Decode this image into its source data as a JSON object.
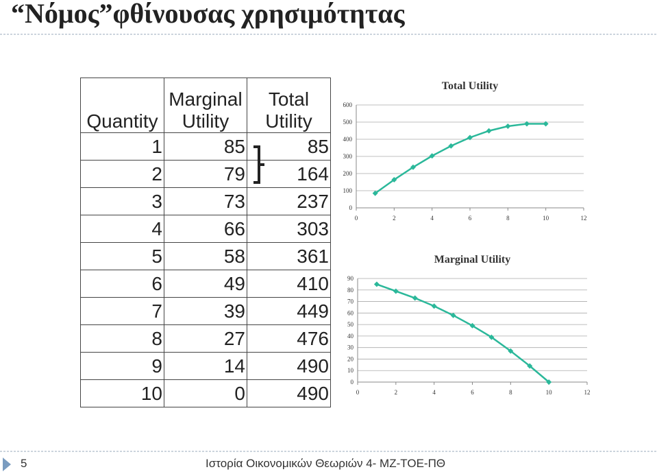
{
  "title": "“Νόμος”φθίνουσας χρησιμότητας",
  "table": {
    "header": [
      "Quantity",
      "Marginal Utility",
      "Total Utility"
    ],
    "rows": [
      [
        1,
        85,
        85
      ],
      [
        2,
        79,
        164
      ],
      [
        3,
        73,
        237
      ],
      [
        4,
        66,
        303
      ],
      [
        5,
        58,
        361
      ],
      [
        6,
        49,
        410
      ],
      [
        7,
        39,
        449
      ],
      [
        8,
        27,
        476
      ],
      [
        9,
        14,
        490
      ],
      [
        10,
        0,
        490
      ]
    ]
  },
  "chart_data": [
    {
      "type": "line",
      "title": "Total Utility",
      "x": [
        1,
        2,
        3,
        4,
        5,
        6,
        7,
        8,
        9,
        10
      ],
      "series": [
        {
          "color": "#2bb89a",
          "values": [
            85,
            164,
            237,
            303,
            361,
            410,
            449,
            476,
            490,
            490
          ]
        }
      ],
      "xlim": [
        0,
        12
      ],
      "xticks": [
        0,
        2,
        4,
        6,
        8,
        10,
        12
      ],
      "ylim": [
        0,
        600
      ],
      "yticks": [
        0,
        100,
        200,
        300,
        400,
        500,
        600
      ],
      "grid": true
    },
    {
      "type": "line",
      "title": "Marginal Utility",
      "x": [
        1,
        2,
        3,
        4,
        5,
        6,
        7,
        8,
        9,
        10
      ],
      "series": [
        {
          "color": "#2bb89a",
          "values": [
            85,
            79,
            73,
            66,
            58,
            49,
            39,
            27,
            14,
            0
          ]
        }
      ],
      "xlim": [
        0,
        12
      ],
      "xticks": [
        0,
        2,
        4,
        6,
        8,
        10,
        12
      ],
      "ylim": [
        0,
        90
      ],
      "yticks": [
        0,
        10,
        20,
        30,
        40,
        50,
        60,
        70,
        80,
        90
      ],
      "grid": true
    }
  ],
  "footer": {
    "page": "5",
    "text": "Ιστορία Οικονομικών Θεωριών 4- ΜΖ-ΤΟΕ-ΠΘ"
  }
}
